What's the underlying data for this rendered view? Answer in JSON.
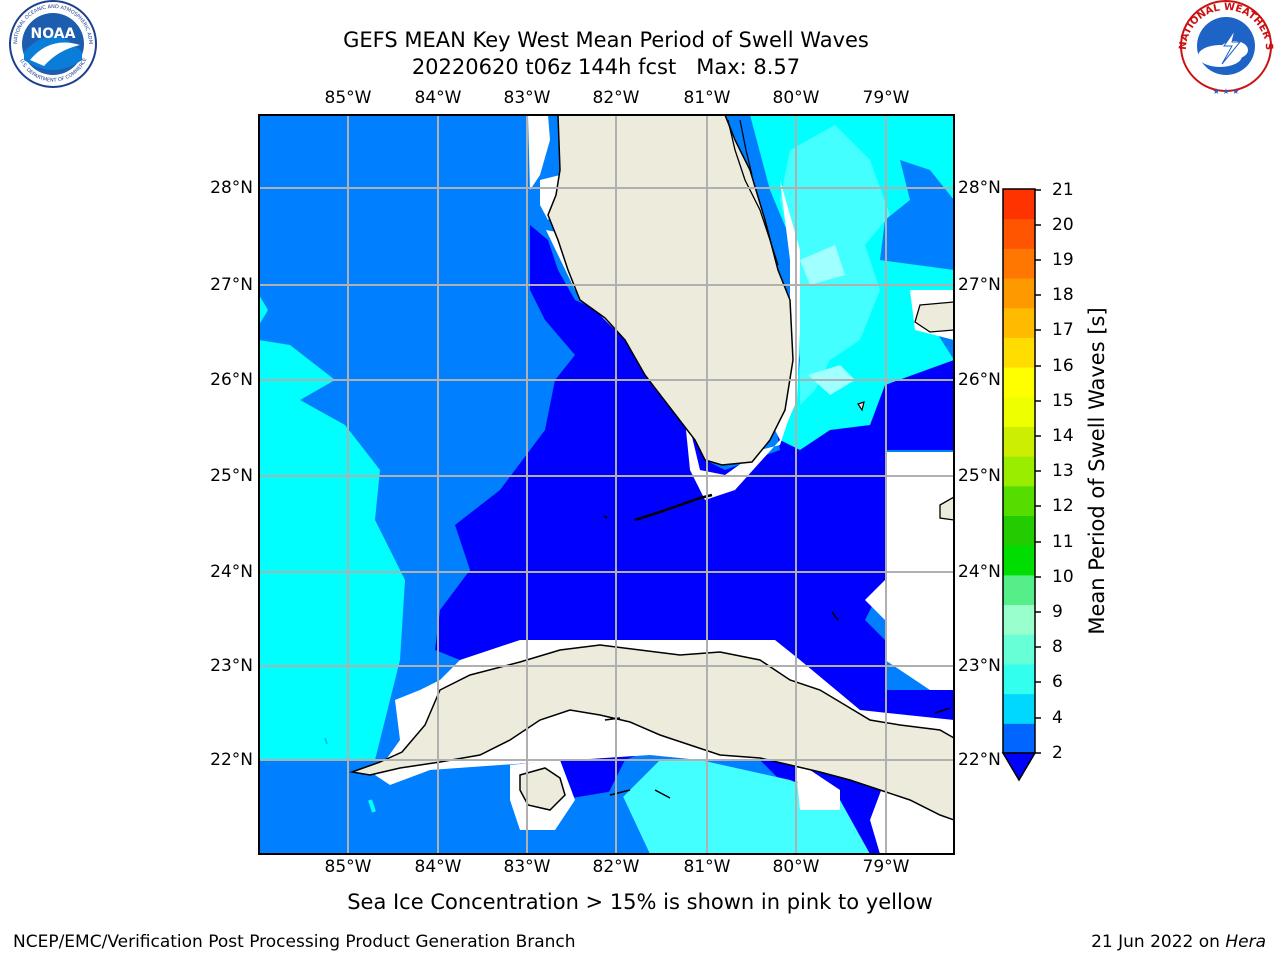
{
  "header": {
    "title_line1": "GEFS MEAN Key West Mean Period of Swell Waves",
    "title_line2": "20220620 t06z 144h fcst   Max: 8.57"
  },
  "logos": {
    "left": {
      "name": "NOAA",
      "ring_text": "NATIONAL OCEANIC AND ATMOSPHERIC ADMINISTRATION",
      "bottom_text": "U.S. DEPARTMENT OF COMMERCE"
    },
    "right": {
      "ring_text": "NATIONAL WEATHER SERVICE"
    }
  },
  "map": {
    "lon_labels": [
      "85°W",
      "84°W",
      "83°W",
      "82°W",
      "81°W",
      "80°W",
      "79°W"
    ],
    "lat_labels": [
      "28°N",
      "27°N",
      "26°N",
      "25°N",
      "24°N",
      "23°N",
      "22°N"
    ],
    "colors": {
      "land": "#ecebdc",
      "ocean_2_4": "#0000ff",
      "ocean_4_6": "#0080ff",
      "ocean_6_7": "#00ffff",
      "ocean_7_8": "#44ffff",
      "ocean_8_9": "#a0ffff",
      "grid": "#b0b0b0"
    }
  },
  "colorbar": {
    "label": "Mean Period of Swell Waves [s]",
    "ticks": [
      "21",
      "20",
      "19",
      "18",
      "17",
      "16",
      "15",
      "14",
      "13",
      "12",
      "11",
      "10",
      "9",
      "8",
      "6",
      "4",
      "2"
    ],
    "colors_bottom_to_top": [
      "#0066ff",
      "#00d8ff",
      "#33ffee",
      "#66ffd6",
      "#99ffcc",
      "#55ee88",
      "#00dd00",
      "#22cc00",
      "#55dd00",
      "#99ee00",
      "#ccee00",
      "#eeff00",
      "#ffff00",
      "#ffdd00",
      "#ffbb00",
      "#ff9900",
      "#ff7700",
      "#ff5500",
      "#ff3300"
    ]
  },
  "caption": "Sea Ice Concentration > 15% is shown in pink to yellow",
  "footer": {
    "left": "NCEP/EMC/Verification Post Processing Product Generation Branch",
    "right_prefix": "21 Jun 2022 on ",
    "right_host": "Hera"
  }
}
